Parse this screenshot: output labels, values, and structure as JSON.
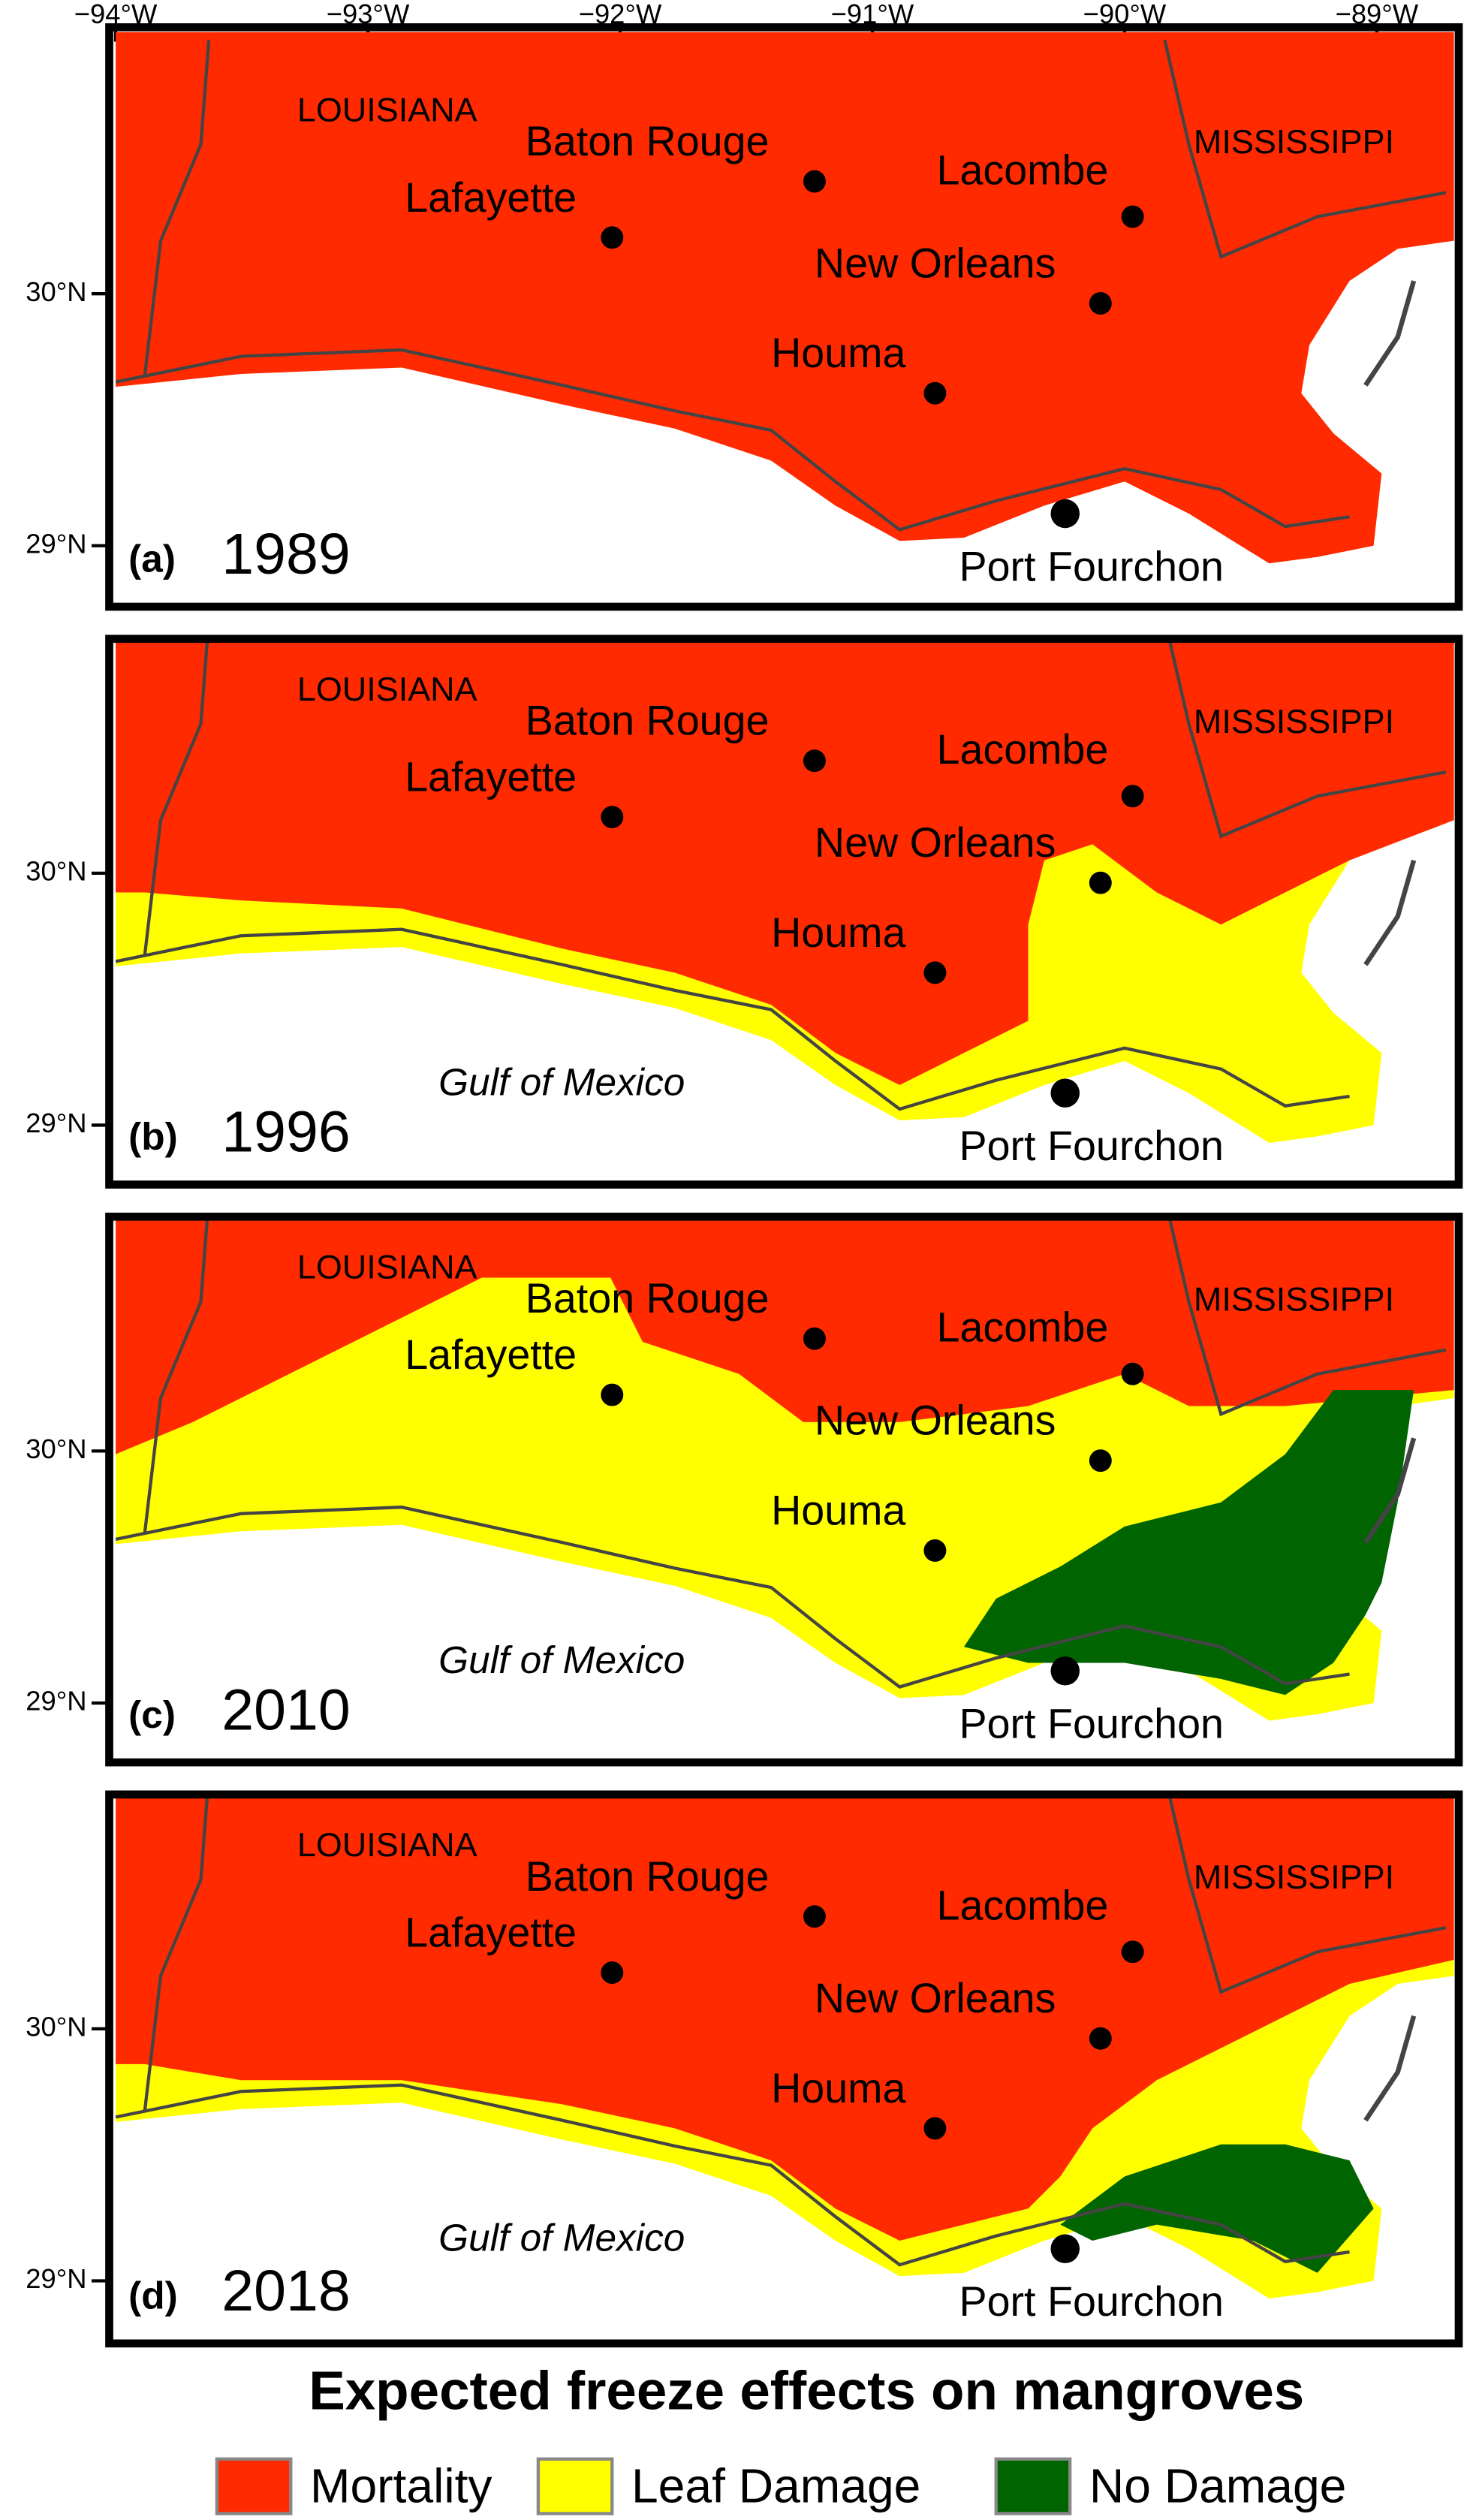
{
  "longitude_ticks": [
    {
      "value": -94,
      "label": "−94°W"
    },
    {
      "value": -93,
      "label": "−93°W"
    },
    {
      "value": -92,
      "label": "−92°W"
    },
    {
      "value": -91,
      "label": "−91°W"
    },
    {
      "value": -90,
      "label": "−90°W"
    },
    {
      "value": -89,
      "label": "−89°W"
    }
  ],
  "panels": [
    {
      "label": "(a)",
      "year": "1989",
      "latitude_ticks": [
        {
          "value": 30,
          "label": "30°N"
        },
        {
          "value": 29,
          "label": "29°N"
        }
      ],
      "places": [
        "LOUISIANA",
        "MISSISSIPPI",
        "Baton Rouge",
        "Lafayette",
        "Lacombe",
        "New Orleans",
        "Houma",
        "Port Fourchon"
      ]
    },
    {
      "label": "(b)",
      "year": "1996",
      "latitude_ticks": [
        {
          "value": 30,
          "label": "30°N"
        },
        {
          "value": 29,
          "label": "29°N"
        }
      ],
      "places": [
        "LOUISIANA",
        "MISSISSIPPI",
        "Baton Rouge",
        "Lafayette",
        "Lacombe",
        "New Orleans",
        "Houma",
        "Port Fourchon"
      ],
      "sea": "Gulf of Mexico"
    },
    {
      "label": "(c)",
      "year": "2010",
      "latitude_ticks": [
        {
          "value": 30,
          "label": "30°N"
        },
        {
          "value": 29,
          "label": "29°N"
        }
      ],
      "places": [
        "LOUISIANA",
        "MISSISSIPPI",
        "Baton Rouge",
        "Lafayette",
        "Lacombe",
        "New Orleans",
        "Houma",
        "Port Fourchon"
      ],
      "sea": "Gulf of Mexico"
    },
    {
      "label": "(d)",
      "year": "2018",
      "latitude_ticks": [
        {
          "value": 30,
          "label": "30°N"
        },
        {
          "value": 29,
          "label": "29°N"
        }
      ],
      "places": [
        "LOUISIANA",
        "MISSISSIPPI",
        "Baton Rouge",
        "Lafayette",
        "Lacombe",
        "New Orleans",
        "Houma",
        "Port Fourchon"
      ],
      "sea": "Gulf of Mexico"
    }
  ],
  "legend": {
    "title": "Expected freeze effects on mangroves",
    "items": [
      {
        "name": "Mortality",
        "color": "#ff2a00"
      },
      {
        "name": "Leaf Damage",
        "color": "#ffff00"
      },
      {
        "name": "No Damage",
        "color": "#006400"
      }
    ]
  }
}
